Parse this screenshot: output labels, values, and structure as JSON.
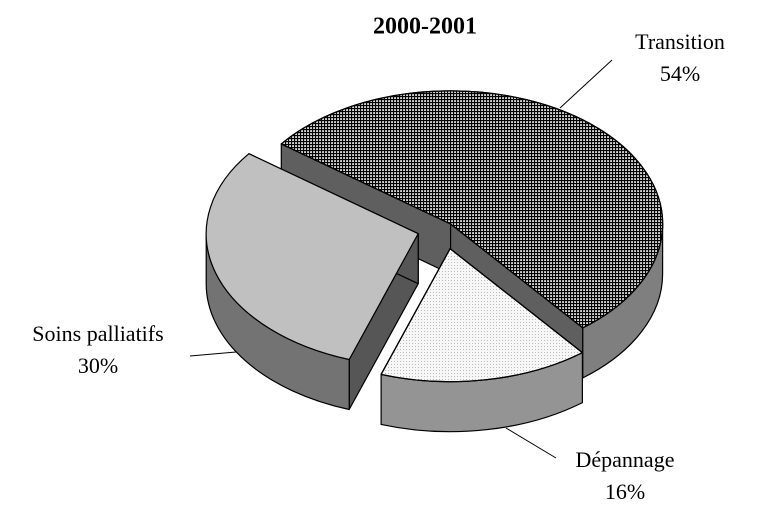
{
  "chart_data": {
    "type": "pie",
    "title": "2000-2001",
    "categories": [
      "Transition",
      "Dépannage",
      "Soins palliatifs"
    ],
    "values": [
      54,
      16,
      30
    ],
    "value_labels": [
      "54%",
      "16%",
      "30%"
    ],
    "colors": [
      "#d4d4d4",
      "#f7f7f7",
      "#c0c0c0"
    ]
  }
}
